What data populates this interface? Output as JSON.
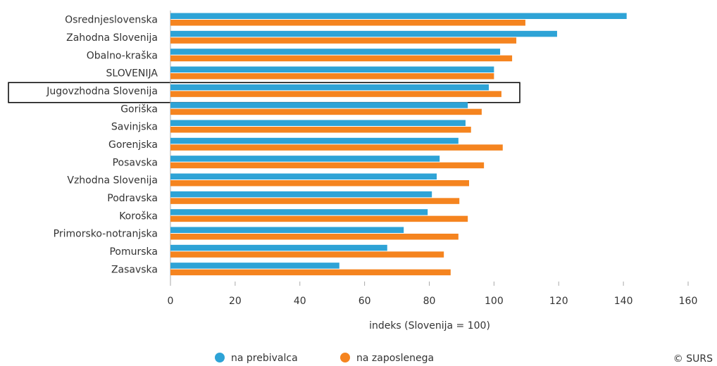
{
  "chart_data": {
    "type": "hbar",
    "xlabel": "indeks (Slovenija = 100)",
    "source": "© SURS",
    "categories": [
      "Osrednjeslovenska",
      "Zahodna Slovenija",
      "Obalno-kraška",
      "SLOVENIJA",
      "Jugovzhodna Slovenija",
      "Goriška",
      "Savinjska",
      "Gorenjska",
      "Posavska",
      "Vzhodna Slovenija",
      "Podravska",
      "Koroška",
      "Primorsko-notranjska",
      "Pomurska",
      "Zasavska"
    ],
    "series": [
      {
        "name": "na prebivalca",
        "color": "#2ea3d6",
        "values": [
          141.0,
          119.5,
          101.9,
          100,
          98.4,
          91.9,
          91.2,
          89.0,
          83.2,
          82.3,
          80.8,
          79.5,
          72.1,
          67.0,
          52.2
        ]
      },
      {
        "name": "na zaposlenega",
        "color": "#f5841f",
        "values": [
          109.7,
          106.9,
          105.6,
          100,
          102.3,
          96.2,
          92.9,
          102.7,
          96.9,
          92.3,
          89.3,
          91.9,
          89.0,
          84.5,
          86.6
        ]
      }
    ],
    "xlim": [
      0,
      160
    ],
    "xticks": [
      0,
      20,
      40,
      60,
      80,
      100,
      120,
      140,
      160
    ],
    "legend": "bottom"
  }
}
